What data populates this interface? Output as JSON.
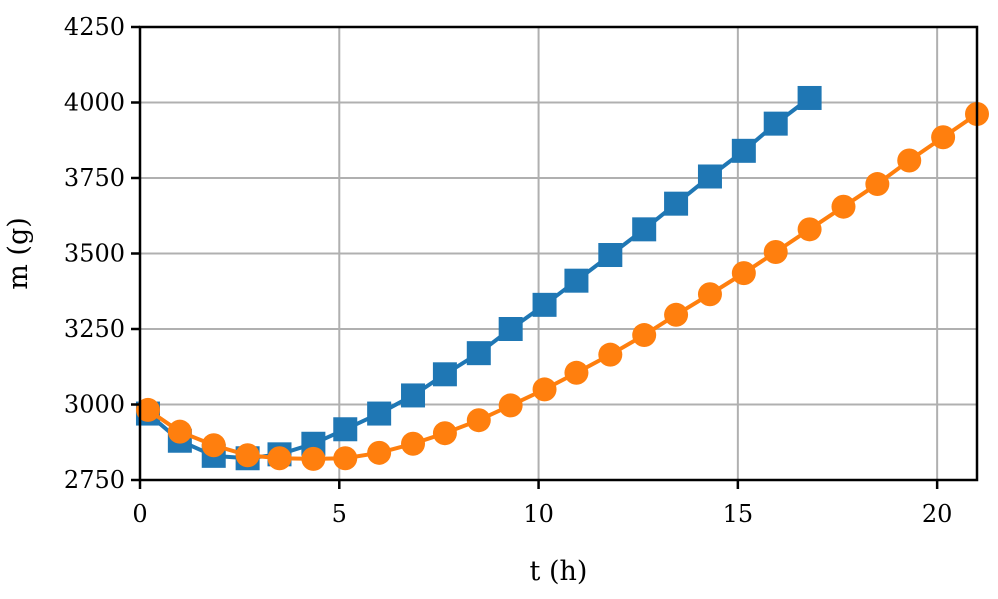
{
  "chart_data": {
    "type": "line",
    "title": "",
    "xlabel": "t (h)",
    "ylabel": "m (g)",
    "xlim": [
      0,
      21
    ],
    "ylim": [
      2750,
      4250
    ],
    "xticks": [
      0,
      5,
      10,
      15,
      20
    ],
    "yticks": [
      2750,
      3000,
      3250,
      3500,
      3750,
      4000,
      4250
    ],
    "grid": true,
    "series": [
      {
        "color": "#1f77b4",
        "marker": "square",
        "x": [
          0.2,
          1.0,
          1.85,
          2.7,
          3.5,
          4.35,
          5.15,
          6.0,
          6.85,
          7.65,
          8.5,
          9.3,
          10.15,
          10.95,
          11.8,
          12.65,
          13.45,
          14.3,
          15.15,
          15.95,
          16.8
        ],
        "y": [
          2970,
          2880,
          2830,
          2822,
          2835,
          2870,
          2918,
          2970,
          3030,
          3100,
          3170,
          3250,
          3330,
          3410,
          3495,
          3580,
          3665,
          3755,
          3840,
          3930,
          4015
        ]
      },
      {
        "color": "#ff7f0e",
        "marker": "circle",
        "x": [
          0.2,
          1.0,
          1.85,
          2.7,
          3.5,
          4.35,
          5.15,
          6.0,
          6.85,
          7.65,
          8.5,
          9.3,
          10.15,
          10.95,
          11.8,
          12.65,
          13.45,
          14.3,
          15.15,
          15.95,
          16.8,
          17.65,
          18.5,
          19.3,
          20.15,
          21.0
        ],
        "y": [
          2982,
          2910,
          2865,
          2832,
          2822,
          2820,
          2822,
          2840,
          2870,
          2905,
          2948,
          2997,
          3050,
          3105,
          3165,
          3230,
          3297,
          3365,
          3435,
          3505,
          3580,
          3655,
          3730,
          3808,
          3885,
          3962
        ]
      }
    ]
  }
}
